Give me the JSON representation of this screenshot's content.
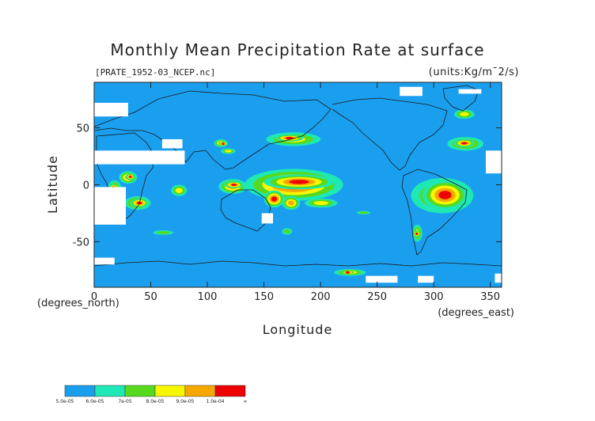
{
  "chart_data": {
    "type": "heatmap",
    "title": "Monthly Mean Precipitation Rate at surface",
    "subtitle": "[PRATE_1952-03_NCEP.nc]",
    "units": "(units:Kg/m¯2/s)",
    "xlabel": "Longitude",
    "ylabel": "Latitude",
    "x_unit_label": "(degrees_east)",
    "y_unit_label": "(degrees_north)",
    "xlim": [
      0,
      360
    ],
    "ylim": [
      -90,
      90
    ],
    "x_ticks": [
      "0",
      "50",
      "100",
      "150",
      "200",
      "250",
      "300",
      "350"
    ],
    "x_tick_values": [
      0,
      50,
      100,
      150,
      200,
      250,
      300,
      350
    ],
    "y_ticks": [
      "50",
      "0",
      "-50"
    ],
    "y_tick_values": [
      50,
      0,
      -50
    ],
    "background_value": "5.0e-05",
    "colorbar": {
      "labels": [
        "5.0e-05",
        "6.0e-05",
        "7e-05",
        "8.0e-05",
        "9.0e-05",
        "1.0e-04",
        "∞"
      ],
      "colors": [
        "#1a9fef",
        "#1ee8b4",
        "#56d91e",
        "#f7f700",
        "#f5a800",
        "#ee0000"
      ]
    },
    "regions": [
      {
        "lon": [
          133,
          220
        ],
        "lat": [
          -14,
          14
        ],
        "level": 5
      },
      {
        "lon": [
          150,
          212
        ],
        "lat": [
          -4,
          9
        ],
        "level": 5
      },
      {
        "lon": [
          150,
          168
        ],
        "lat": [
          -20,
          -5
        ],
        "level": 5
      },
      {
        "lon": [
          166,
          182
        ],
        "lat": [
          -22,
          -10
        ],
        "level": 4
      },
      {
        "lon": [
          186,
          215
        ],
        "lat": [
          -20,
          -12
        ],
        "level": 3
      },
      {
        "lon": [
          152,
          200
        ],
        "lat": [
          34,
          46
        ],
        "level": 3
      },
      {
        "lon": [
          160,
          185
        ],
        "lat": [
          38,
          44
        ],
        "level": 5
      },
      {
        "lon": [
          110,
          135
        ],
        "lat": [
          -8,
          5
        ],
        "level": 4
      },
      {
        "lon": [
          115,
          132
        ],
        "lat": [
          -3,
          3
        ],
        "level": 5
      },
      {
        "lon": [
          112,
          125
        ],
        "lat": [
          27,
          32
        ],
        "level": 3
      },
      {
        "lon": [
          106,
          118
        ],
        "lat": [
          33,
          40
        ],
        "level": 4
      },
      {
        "lon": [
          110,
          118
        ],
        "lat": [
          34,
          38
        ],
        "level": 5
      },
      {
        "lon": [
          27,
          50
        ],
        "lat": [
          -22,
          -10
        ],
        "level": 4
      },
      {
        "lon": [
          32,
          48
        ],
        "lat": [
          -20,
          -12
        ],
        "level": 5
      },
      {
        "lon": [
          22,
          38
        ],
        "lat": [
          1,
          12
        ],
        "level": 4
      },
      {
        "lon": [
          28,
          36
        ],
        "lat": [
          4,
          10
        ],
        "level": 5
      },
      {
        "lon": [
          12,
          24
        ],
        "lat": [
          -10,
          4
        ],
        "level": 3
      },
      {
        "lon": [
          14,
          20
        ],
        "lat": [
          -6,
          1
        ],
        "level": 5
      },
      {
        "lon": [
          68,
          82
        ],
        "lat": [
          -10,
          0
        ],
        "level": 3
      },
      {
        "lon": [
          68,
          76
        ],
        "lat": [
          33,
          38
        ],
        "level": 3
      },
      {
        "lon": [
          280,
          335
        ],
        "lat": [
          -25,
          6
        ],
        "level": 3
      },
      {
        "lon": [
          290,
          330
        ],
        "lat": [
          -22,
          4
        ],
        "level": 5
      },
      {
        "lon": [
          312,
          344
        ],
        "lat": [
          30,
          42
        ],
        "level": 3
      },
      {
        "lon": [
          318,
          336
        ],
        "lat": [
          33,
          40
        ],
        "level": 5
      },
      {
        "lon": [
          318,
          336
        ],
        "lat": [
          58,
          66
        ],
        "level": 3
      },
      {
        "lon": [
          281,
          290
        ],
        "lat": [
          -50,
          -35
        ],
        "level": 3
      },
      {
        "lon": [
          282,
          288
        ],
        "lat": [
          -46,
          -40
        ],
        "level": 5
      },
      {
        "lon": [
          212,
          240
        ],
        "lat": [
          -80,
          -74
        ],
        "level": 3
      },
      {
        "lon": [
          218,
          230
        ],
        "lat": [
          -78,
          -76
        ],
        "level": 5
      },
      {
        "lon": [
          166,
          175
        ],
        "lat": [
          -44,
          -38
        ],
        "level": 2
      },
      {
        "lon": [
          52,
          70
        ],
        "lat": [
          -44,
          -40
        ],
        "level": 2
      },
      {
        "lon": [
          232,
          244
        ],
        "lat": [
          -26,
          -23
        ],
        "level": 2
      }
    ],
    "missing": [
      {
        "lon": [
          0,
          28
        ],
        "lat": [
          -35,
          -2
        ]
      },
      {
        "lon": [
          0,
          80
        ],
        "lat": [
          18,
          30
        ]
      },
      {
        "lon": [
          60,
          78
        ],
        "lat": [
          32,
          40
        ]
      },
      {
        "lon": [
          0,
          30
        ],
        "lat": [
          60,
          72
        ]
      },
      {
        "lon": [
          148,
          158
        ],
        "lat": [
          -34,
          -25
        ]
      },
      {
        "lon": [
          240,
          268
        ],
        "lat": [
          -86,
          -80
        ]
      },
      {
        "lon": [
          286,
          300
        ],
        "lat": [
          -86,
          -80
        ]
      },
      {
        "lon": [
          0,
          18
        ],
        "lat": [
          -70,
          -64
        ]
      },
      {
        "lon": [
          346,
          360
        ],
        "lat": [
          10,
          30
        ]
      },
      {
        "lon": [
          270,
          290
        ],
        "lat": [
          78,
          86
        ]
      },
      {
        "lon": [
          322,
          342
        ],
        "lat": [
          80,
          84
        ]
      },
      {
        "lon": [
          354,
          360
        ],
        "lat": [
          -86,
          -78
        ]
      }
    ]
  }
}
